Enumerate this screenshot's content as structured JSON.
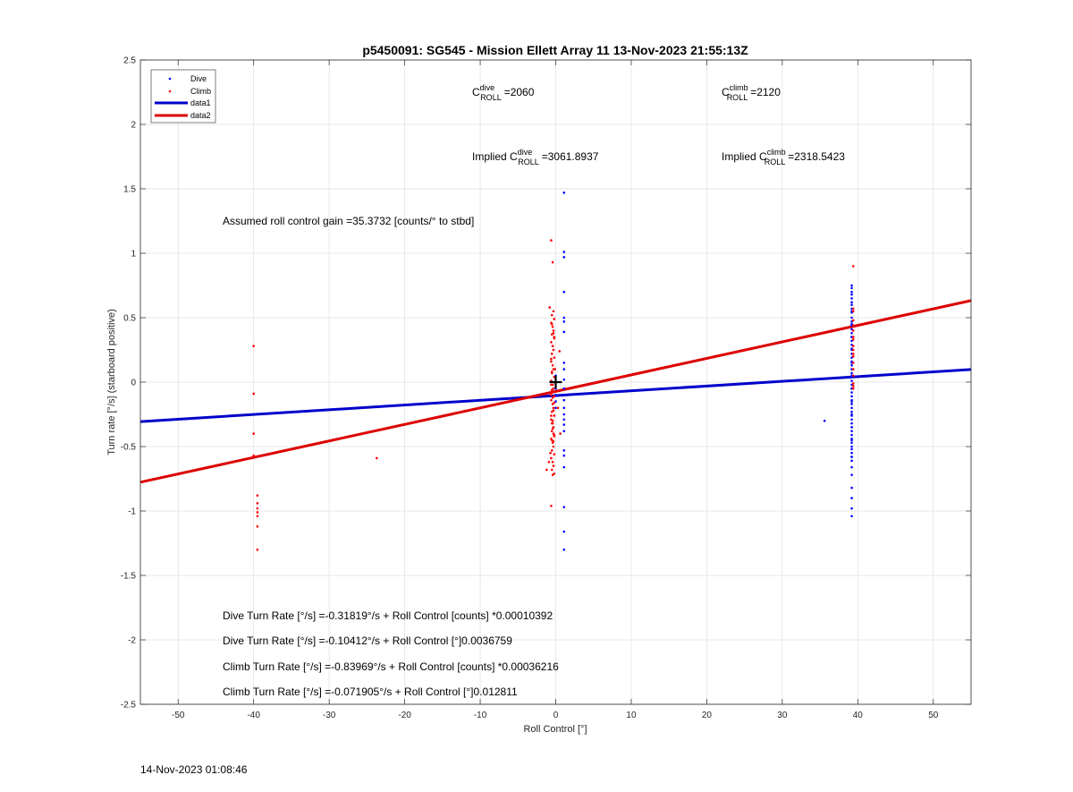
{
  "chart_data": {
    "type": "scatter",
    "title": "p5450091: SG545 - Mission Ellett Array 11 13-Nov-2023 21:55:13Z",
    "xlabel": "Roll Control [°]",
    "ylabel": "Turn rate [°/s] (starboard positive)",
    "xlim": [
      -55,
      55
    ],
    "ylim": [
      -2.5,
      2.5
    ],
    "xticks": [
      -50,
      -40,
      -30,
      -20,
      -10,
      0,
      10,
      20,
      30,
      40,
      50
    ],
    "yticks": [
      -2.5,
      -2,
      -1.5,
      -1,
      -0.5,
      0,
      0.5,
      1,
      1.5,
      2,
      2.5
    ],
    "xtick_labels": [
      "-50",
      "-40",
      "-30",
      "-20",
      "-10",
      "0",
      "10",
      "20",
      "30",
      "40",
      "50"
    ],
    "ytick_labels": [
      "-2.5",
      "-2",
      "-1.5",
      "-1",
      "-0.5",
      "0",
      "0.5",
      "1",
      "1.5",
      "2",
      "2.5"
    ],
    "grid": true,
    "legend_position": "top-left",
    "colors": {
      "dive": "#0000ff",
      "climb": "#ff0000",
      "data1": "#0000cc",
      "data2": "#dd0000"
    },
    "series": [
      {
        "name": "Dive",
        "kind": "scatter",
        "x": [
          1.1,
          1.1,
          1.1,
          1.1,
          1.1,
          1.1,
          1.1,
          1.1,
          1.1,
          1.1,
          1.1,
          1.1,
          1.1,
          1.1,
          1.1,
          1.1,
          1.1,
          1.1,
          1.1,
          1.1,
          1.1,
          1.1,
          1.1,
          1.1,
          0.0,
          0.0,
          0.0,
          0.0,
          0.0,
          0.0,
          35.6,
          39.2,
          39.2,
          39.2,
          39.2,
          39.2,
          39.2,
          39.2,
          39.2,
          39.2,
          39.2,
          39.2,
          39.2,
          39.2,
          39.2,
          39.2,
          39.2,
          39.2,
          39.2,
          39.2,
          39.2,
          39.2,
          39.2,
          39.2,
          39.2,
          39.2,
          39.2,
          39.2,
          39.2,
          39.2,
          39.2,
          39.2,
          39.2,
          39.2,
          39.2,
          39.2,
          39.2,
          39.2,
          39.2,
          39.2,
          39.2,
          39.2,
          39.2,
          39.2,
          39.2,
          39.2,
          39.2,
          39.2,
          39.2,
          39.2,
          39.2,
          39.2,
          39.2,
          39.2,
          39.2,
          39.2,
          39.2,
          39.2,
          39.2,
          39.2,
          39.2,
          39.2,
          39.2,
          39.2,
          39.2,
          39.2
        ],
        "y": [
          1.47,
          1.01,
          0.97,
          0.7,
          0.5,
          0.47,
          0.39,
          0.15,
          0.1,
          0.02,
          -0.05,
          -0.1,
          -0.14,
          -0.2,
          -0.25,
          -0.29,
          -0.33,
          -0.38,
          -0.53,
          -0.57,
          -0.66,
          -0.97,
          -1.16,
          -1.3,
          0.05,
          0.0,
          -0.05,
          -0.1,
          -0.15,
          -0.2,
          -0.3,
          0.75,
          0.73,
          0.7,
          0.68,
          0.65,
          0.62,
          0.6,
          0.57,
          0.54,
          0.5,
          0.47,
          0.44,
          0.41,
          0.38,
          0.35,
          0.32,
          0.29,
          0.26,
          0.22,
          0.19,
          0.16,
          0.13,
          0.1,
          0.07,
          0.04,
          0.01,
          -0.02,
          -0.05,
          -0.08,
          -0.11,
          -0.14,
          -0.17,
          -0.2,
          -0.23,
          -0.26,
          -0.29,
          -0.32,
          -0.35,
          -0.38,
          -0.41,
          -0.44,
          -0.47,
          -0.5,
          -0.52,
          -0.55,
          -0.58,
          -0.61,
          -0.66,
          -0.72,
          -0.82,
          -0.9,
          -0.98,
          -1.04,
          0.55,
          0.45,
          0.35,
          0.25,
          0.15,
          0.05,
          -0.05,
          -0.15,
          -0.25,
          -0.35,
          -0.45,
          -0.58
        ]
      },
      {
        "name": "Climb",
        "kind": "scatter",
        "x": [
          -40.0,
          -40.0,
          -40.0,
          -40.0,
          -39.5,
          -39.5,
          -39.5,
          -39.5,
          -39.5,
          -39.5,
          -39.5,
          -23.7,
          -0.6,
          -0.4,
          -0.8,
          -0.3,
          -0.5,
          -0.2,
          -0.6,
          -0.4,
          -0.3,
          -0.5,
          -0.2,
          -0.6,
          -0.4,
          -0.3,
          -0.5,
          -0.2,
          -0.6,
          -0.4,
          -0.3,
          -0.5,
          -0.2,
          -0.6,
          -0.4,
          -0.3,
          -0.5,
          -0.2,
          -0.6,
          -0.4,
          -0.3,
          -0.5,
          -0.2,
          -0.6,
          -0.4,
          -0.3,
          -0.5,
          -0.2,
          -0.6,
          -0.4,
          -0.3,
          -0.5,
          -0.2,
          -0.6,
          -0.4,
          -0.3,
          -0.5,
          -0.2,
          -0.6,
          -0.4,
          -0.3,
          -0.5,
          -0.2,
          -0.6,
          -0.4,
          -0.3,
          -0.5,
          -0.2,
          -0.6,
          -0.4,
          -0.3,
          -0.5,
          -0.2,
          -0.6,
          -0.4,
          -0.3,
          -0.5,
          -0.2,
          -0.6,
          -0.4,
          0.5,
          0.6,
          -1.2,
          -0.7,
          -0.1,
          0.3,
          -0.9,
          -0.5,
          39.4,
          39.4,
          39.4,
          39.4,
          39.4,
          39.4,
          39.4,
          39.4,
          39.4,
          39.4,
          39.4,
          39.4,
          39.4,
          39.4,
          39.4,
          39.4,
          39.4,
          39.4
        ],
        "y": [
          0.28,
          -0.09,
          -0.4,
          -0.57,
          -0.88,
          -0.94,
          -0.98,
          -1.01,
          -1.04,
          -1.12,
          -1.3,
          -0.59,
          1.1,
          0.93,
          0.58,
          0.55,
          0.52,
          0.49,
          0.46,
          0.43,
          0.4,
          0.37,
          0.34,
          0.31,
          0.28,
          0.25,
          0.22,
          0.19,
          0.16,
          0.13,
          0.1,
          0.07,
          0.04,
          0.01,
          -0.02,
          -0.05,
          -0.08,
          -0.11,
          -0.14,
          -0.17,
          -0.2,
          -0.23,
          -0.26,
          -0.29,
          -0.32,
          -0.35,
          -0.38,
          -0.41,
          -0.44,
          -0.47,
          -0.5,
          -0.53,
          -0.56,
          -0.59,
          -0.62,
          -0.65,
          -0.68,
          -0.71,
          -0.02,
          -0.12,
          -0.22,
          -0.32,
          -0.42,
          0.18,
          0.28,
          0.38,
          -0.06,
          -0.16,
          -0.26,
          -0.36,
          -0.46,
          0.08,
          0.0,
          -0.1,
          -0.3,
          -0.4,
          0.45,
          0.35,
          -0.96,
          -0.72,
          0.24,
          -0.4,
          -0.68,
          -0.55,
          0.1,
          -0.2,
          -0.62,
          -0.45,
          0.9,
          0.57,
          0.55,
          0.48,
          0.44,
          0.4,
          0.33,
          0.25,
          0.2,
          0.15,
          0.1,
          0.05,
          -0.01,
          -0.03,
          -0.05,
          0.35,
          0.28,
          0.22
        ]
      },
      {
        "name": "data1",
        "kind": "line",
        "x": [
          -55,
          55
        ],
        "y": [
          -0.3064,
          0.0981
        ]
      },
      {
        "name": "data2",
        "kind": "line",
        "x": [
          -55,
          55
        ],
        "y": [
          -0.7765,
          0.6327
        ]
      }
    ],
    "marker": {
      "x": 0,
      "y": 0,
      "shape": "plus"
    },
    "annotations": {
      "cdive_label": "=2060",
      "cclimb_label": "=2120",
      "implied_dive_label": "=3061.8937",
      "implied_climb_label": "=2318.5423",
      "implied_prefix": "Implied C",
      "c_base": "C",
      "sub_roll": "ROLL",
      "sup_dive": "dive",
      "sup_climb": "climb",
      "gain": "Assumed roll control gain =35.3732 [counts/° to stbd]",
      "eq1": "Dive Turn Rate [°/s] =-0.31819°/s + Roll Control [counts] *0.00010392",
      "eq2": "Dive Turn Rate [°/s] =-0.10412°/s + Roll Control [°]0.0036759",
      "eq3": "Climb Turn Rate [°/s] =-0.83969°/s + Roll Control [counts] *0.00036216",
      "eq4": "Climb Turn Rate [°/s] =-0.071905°/s + Roll Control [°]0.012811"
    }
  },
  "footer": {
    "timestamp": "14-Nov-2023 01:08:46"
  }
}
